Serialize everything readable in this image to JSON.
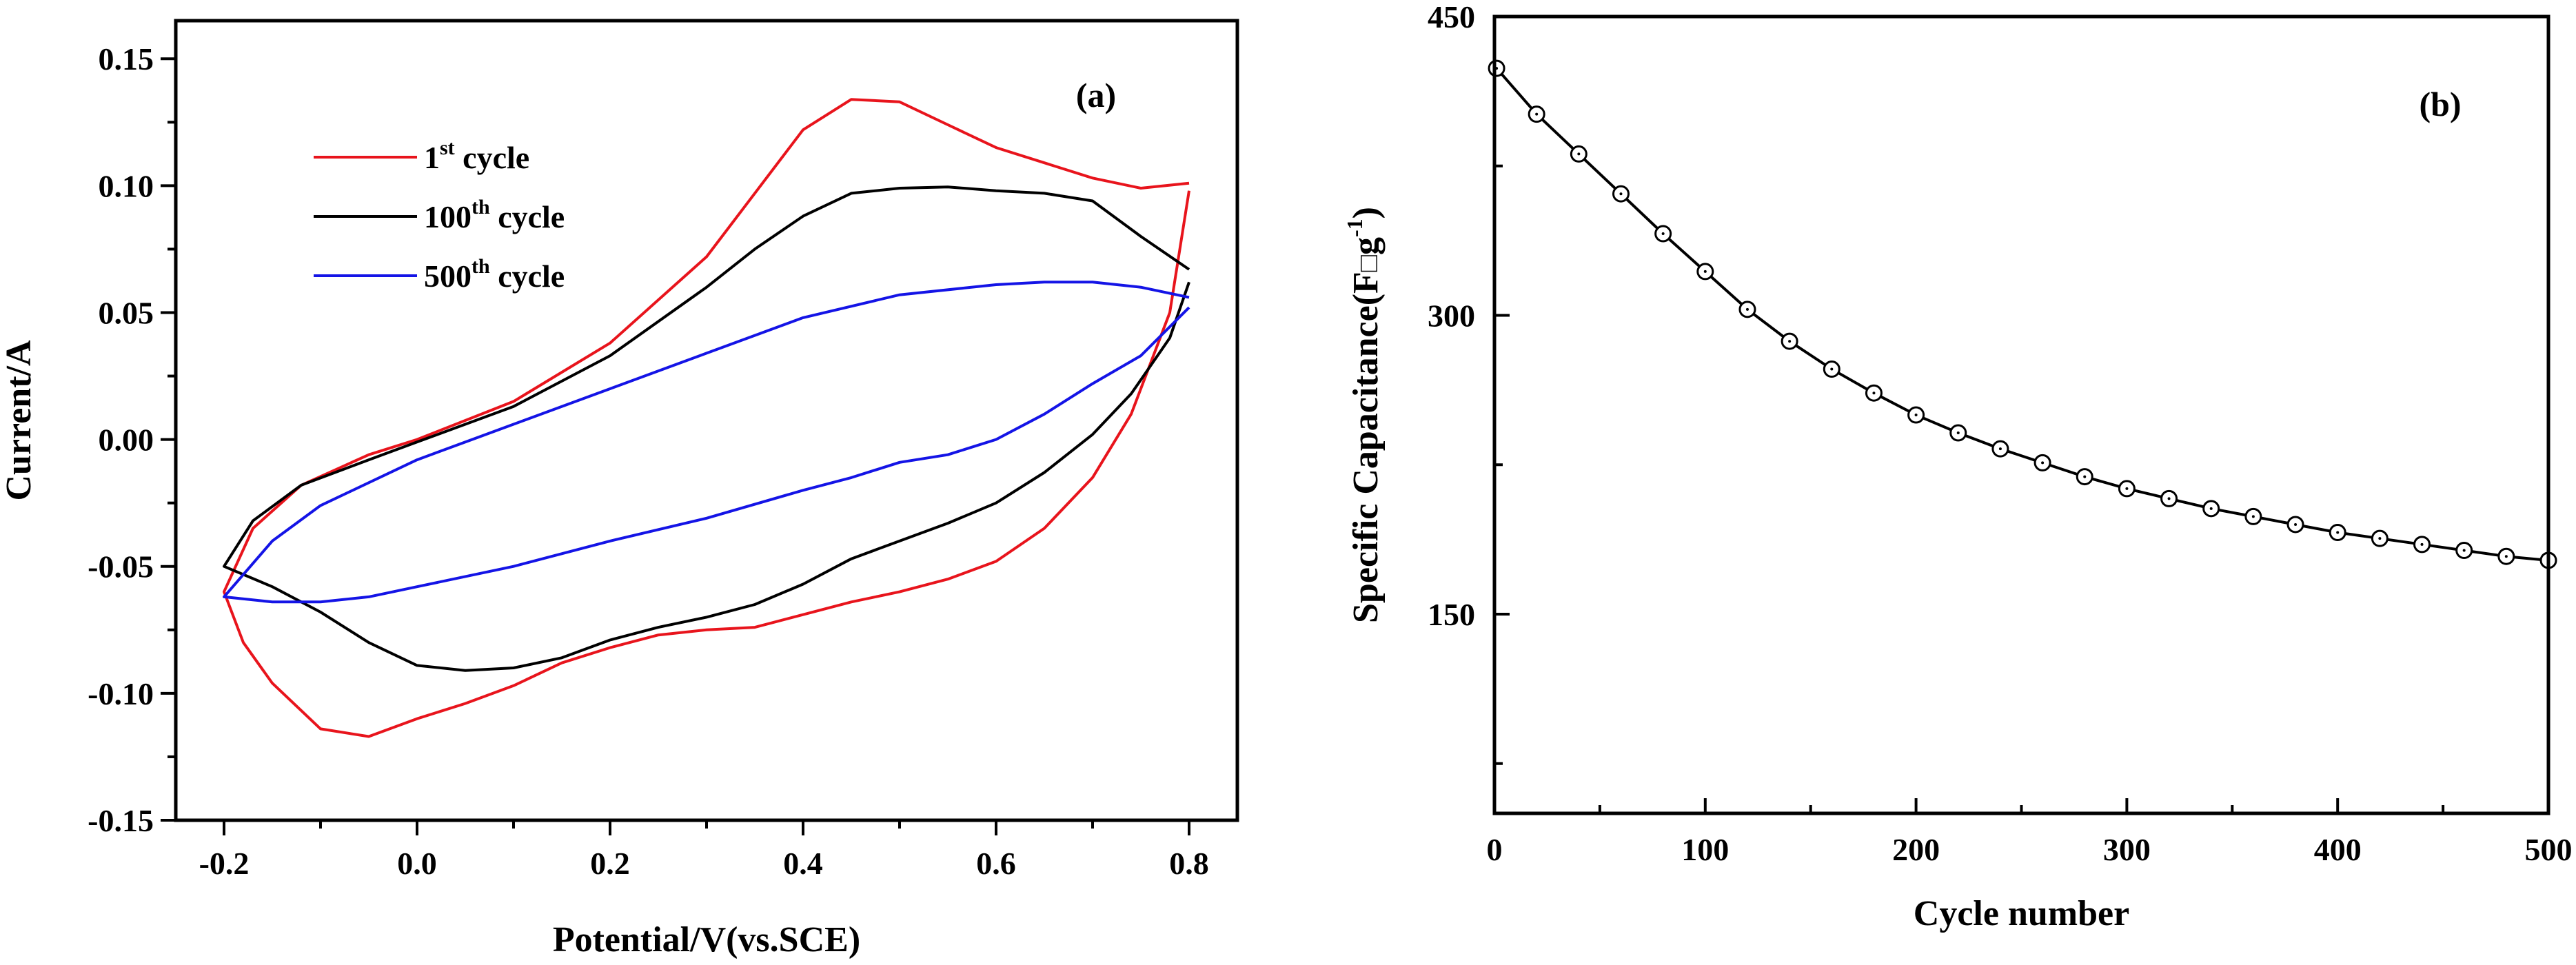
{
  "chart_data": [
    {
      "id": "a",
      "type": "line",
      "panel_label": "(a)",
      "xlabel": "Potential/V(vs.SCE)",
      "ylabel": "Current/A",
      "xlim": [
        -0.25,
        0.85
      ],
      "ylim": [
        -0.15,
        0.165
      ],
      "x_ticks": [
        -0.2,
        0.0,
        0.2,
        0.4,
        0.6,
        0.8
      ],
      "x_tick_labels": [
        "-0.2",
        "0.0",
        "0.2",
        "0.4",
        "0.6",
        "0.8"
      ],
      "y_ticks": [
        -0.15,
        -0.1,
        -0.05,
        0.0,
        0.05,
        0.1,
        0.15
      ],
      "y_tick_labels": [
        "-0.15",
        "-0.10",
        "-0.05",
        "0.00",
        "0.05",
        "0.10",
        "0.15"
      ],
      "legend_position": "top-left",
      "series": [
        {
          "name": "1st cycle",
          "legend_base": "1",
          "legend_sup": "st",
          "legend_rest": " cycle",
          "color": "#e8141c",
          "points": [
            [
              0.8,
              0.098
            ],
            [
              0.78,
              0.05
            ],
            [
              0.74,
              0.01
            ],
            [
              0.7,
              -0.015
            ],
            [
              0.65,
              -0.035
            ],
            [
              0.6,
              -0.048
            ],
            [
              0.55,
              -0.055
            ],
            [
              0.5,
              -0.06
            ],
            [
              0.45,
              -0.064
            ],
            [
              0.4,
              -0.069
            ],
            [
              0.35,
              -0.074
            ],
            [
              0.3,
              -0.075
            ],
            [
              0.25,
              -0.077
            ],
            [
              0.2,
              -0.082
            ],
            [
              0.15,
              -0.088
            ],
            [
              0.1,
              -0.097
            ],
            [
              0.05,
              -0.104
            ],
            [
              0.0,
              -0.11
            ],
            [
              -0.05,
              -0.117
            ],
            [
              -0.1,
              -0.114
            ],
            [
              -0.15,
              -0.096
            ],
            [
              -0.18,
              -0.08
            ],
            [
              -0.2,
              -0.06
            ],
            [
              -0.17,
              -0.035
            ],
            [
              -0.12,
              -0.018
            ],
            [
              -0.05,
              -0.006
            ],
            [
              0.0,
              0.0
            ],
            [
              0.1,
              0.015
            ],
            [
              0.2,
              0.038
            ],
            [
              0.3,
              0.072
            ],
            [
              0.35,
              0.097
            ],
            [
              0.4,
              0.122
            ],
            [
              0.45,
              0.134
            ],
            [
              0.5,
              0.133
            ],
            [
              0.55,
              0.124
            ],
            [
              0.6,
              0.115
            ],
            [
              0.65,
              0.109
            ],
            [
              0.7,
              0.103
            ],
            [
              0.75,
              0.099
            ],
            [
              0.8,
              0.101
            ]
          ]
        },
        {
          "name": "100th cycle",
          "legend_base": "100",
          "legend_sup": "th",
          "legend_rest": " cycle",
          "color": "#000000",
          "points": [
            [
              0.8,
              0.062
            ],
            [
              0.78,
              0.04
            ],
            [
              0.74,
              0.018
            ],
            [
              0.7,
              0.002
            ],
            [
              0.65,
              -0.013
            ],
            [
              0.6,
              -0.025
            ],
            [
              0.55,
              -0.033
            ],
            [
              0.5,
              -0.04
            ],
            [
              0.45,
              -0.047
            ],
            [
              0.4,
              -0.057
            ],
            [
              0.35,
              -0.065
            ],
            [
              0.3,
              -0.07
            ],
            [
              0.25,
              -0.074
            ],
            [
              0.2,
              -0.079
            ],
            [
              0.15,
              -0.086
            ],
            [
              0.1,
              -0.09
            ],
            [
              0.05,
              -0.091
            ],
            [
              0.0,
              -0.089
            ],
            [
              -0.05,
              -0.08
            ],
            [
              -0.1,
              -0.068
            ],
            [
              -0.15,
              -0.058
            ],
            [
              -0.2,
              -0.05
            ],
            [
              -0.17,
              -0.032
            ],
            [
              -0.12,
              -0.018
            ],
            [
              -0.05,
              -0.008
            ],
            [
              0.0,
              -0.001
            ],
            [
              0.1,
              0.013
            ],
            [
              0.2,
              0.033
            ],
            [
              0.3,
              0.06
            ],
            [
              0.35,
              0.075
            ],
            [
              0.4,
              0.088
            ],
            [
              0.45,
              0.097
            ],
            [
              0.5,
              0.099
            ],
            [
              0.55,
              0.0995
            ],
            [
              0.6,
              0.098
            ],
            [
              0.65,
              0.097
            ],
            [
              0.7,
              0.094
            ],
            [
              0.75,
              0.08
            ],
            [
              0.8,
              0.067
            ]
          ]
        },
        {
          "name": "500th cycle",
          "legend_base": "500",
          "legend_sup": "th",
          "legend_rest": " cycle",
          "color": "#1414e6",
          "points": [
            [
              0.8,
              0.052
            ],
            [
              0.75,
              0.033
            ],
            [
              0.7,
              0.022
            ],
            [
              0.65,
              0.01
            ],
            [
              0.6,
              0.0
            ],
            [
              0.55,
              -0.006
            ],
            [
              0.5,
              -0.009
            ],
            [
              0.45,
              -0.015
            ],
            [
              0.4,
              -0.02
            ],
            [
              0.3,
              -0.031
            ],
            [
              0.2,
              -0.04
            ],
            [
              0.1,
              -0.05
            ],
            [
              0.0,
              -0.058
            ],
            [
              -0.05,
              -0.062
            ],
            [
              -0.1,
              -0.064
            ],
            [
              -0.15,
              -0.064
            ],
            [
              -0.2,
              -0.062
            ],
            [
              -0.15,
              -0.04
            ],
            [
              -0.1,
              -0.026
            ],
            [
              0.0,
              -0.008
            ],
            [
              0.1,
              0.006
            ],
            [
              0.2,
              0.02
            ],
            [
              0.3,
              0.034
            ],
            [
              0.4,
              0.048
            ],
            [
              0.5,
              0.057
            ],
            [
              0.6,
              0.061
            ],
            [
              0.65,
              0.062
            ],
            [
              0.7,
              0.062
            ],
            [
              0.75,
              0.06
            ],
            [
              0.8,
              0.056
            ]
          ]
        }
      ]
    },
    {
      "id": "b",
      "type": "line",
      "panel_label": "(b)",
      "xlabel": "Cycle number",
      "ylabel_base": "Specific Capacitance(F",
      "ylabel_box": "□",
      "ylabel_g": "g",
      "ylabel_sup": "-1",
      "ylabel_end": ")",
      "xlim": [
        0,
        500
      ],
      "ylim": [
        50,
        450
      ],
      "x_ticks": [
        0,
        100,
        200,
        300,
        400,
        500
      ],
      "x_tick_labels": [
        "0",
        "100",
        "200",
        "300",
        "400",
        "500"
      ],
      "y_ticks": [
        150,
        300,
        450
      ],
      "y_tick_labels": [
        "150",
        "300",
        "450"
      ],
      "series": [
        {
          "name": "Specific Capacitance",
          "color": "#000000",
          "x": [
            1,
            20,
            40,
            60,
            80,
            100,
            120,
            140,
            160,
            180,
            200,
            220,
            240,
            260,
            280,
            300,
            320,
            340,
            360,
            380,
            400,
            420,
            440,
            460,
            480,
            500
          ],
          "values": [
            424,
            401,
            381,
            361,
            341,
            322,
            303,
            287,
            273,
            261,
            250,
            241,
            233,
            226,
            219,
            213,
            208,
            203,
            199,
            195,
            191,
            188,
            185,
            182,
            179,
            177
          ]
        }
      ]
    }
  ]
}
